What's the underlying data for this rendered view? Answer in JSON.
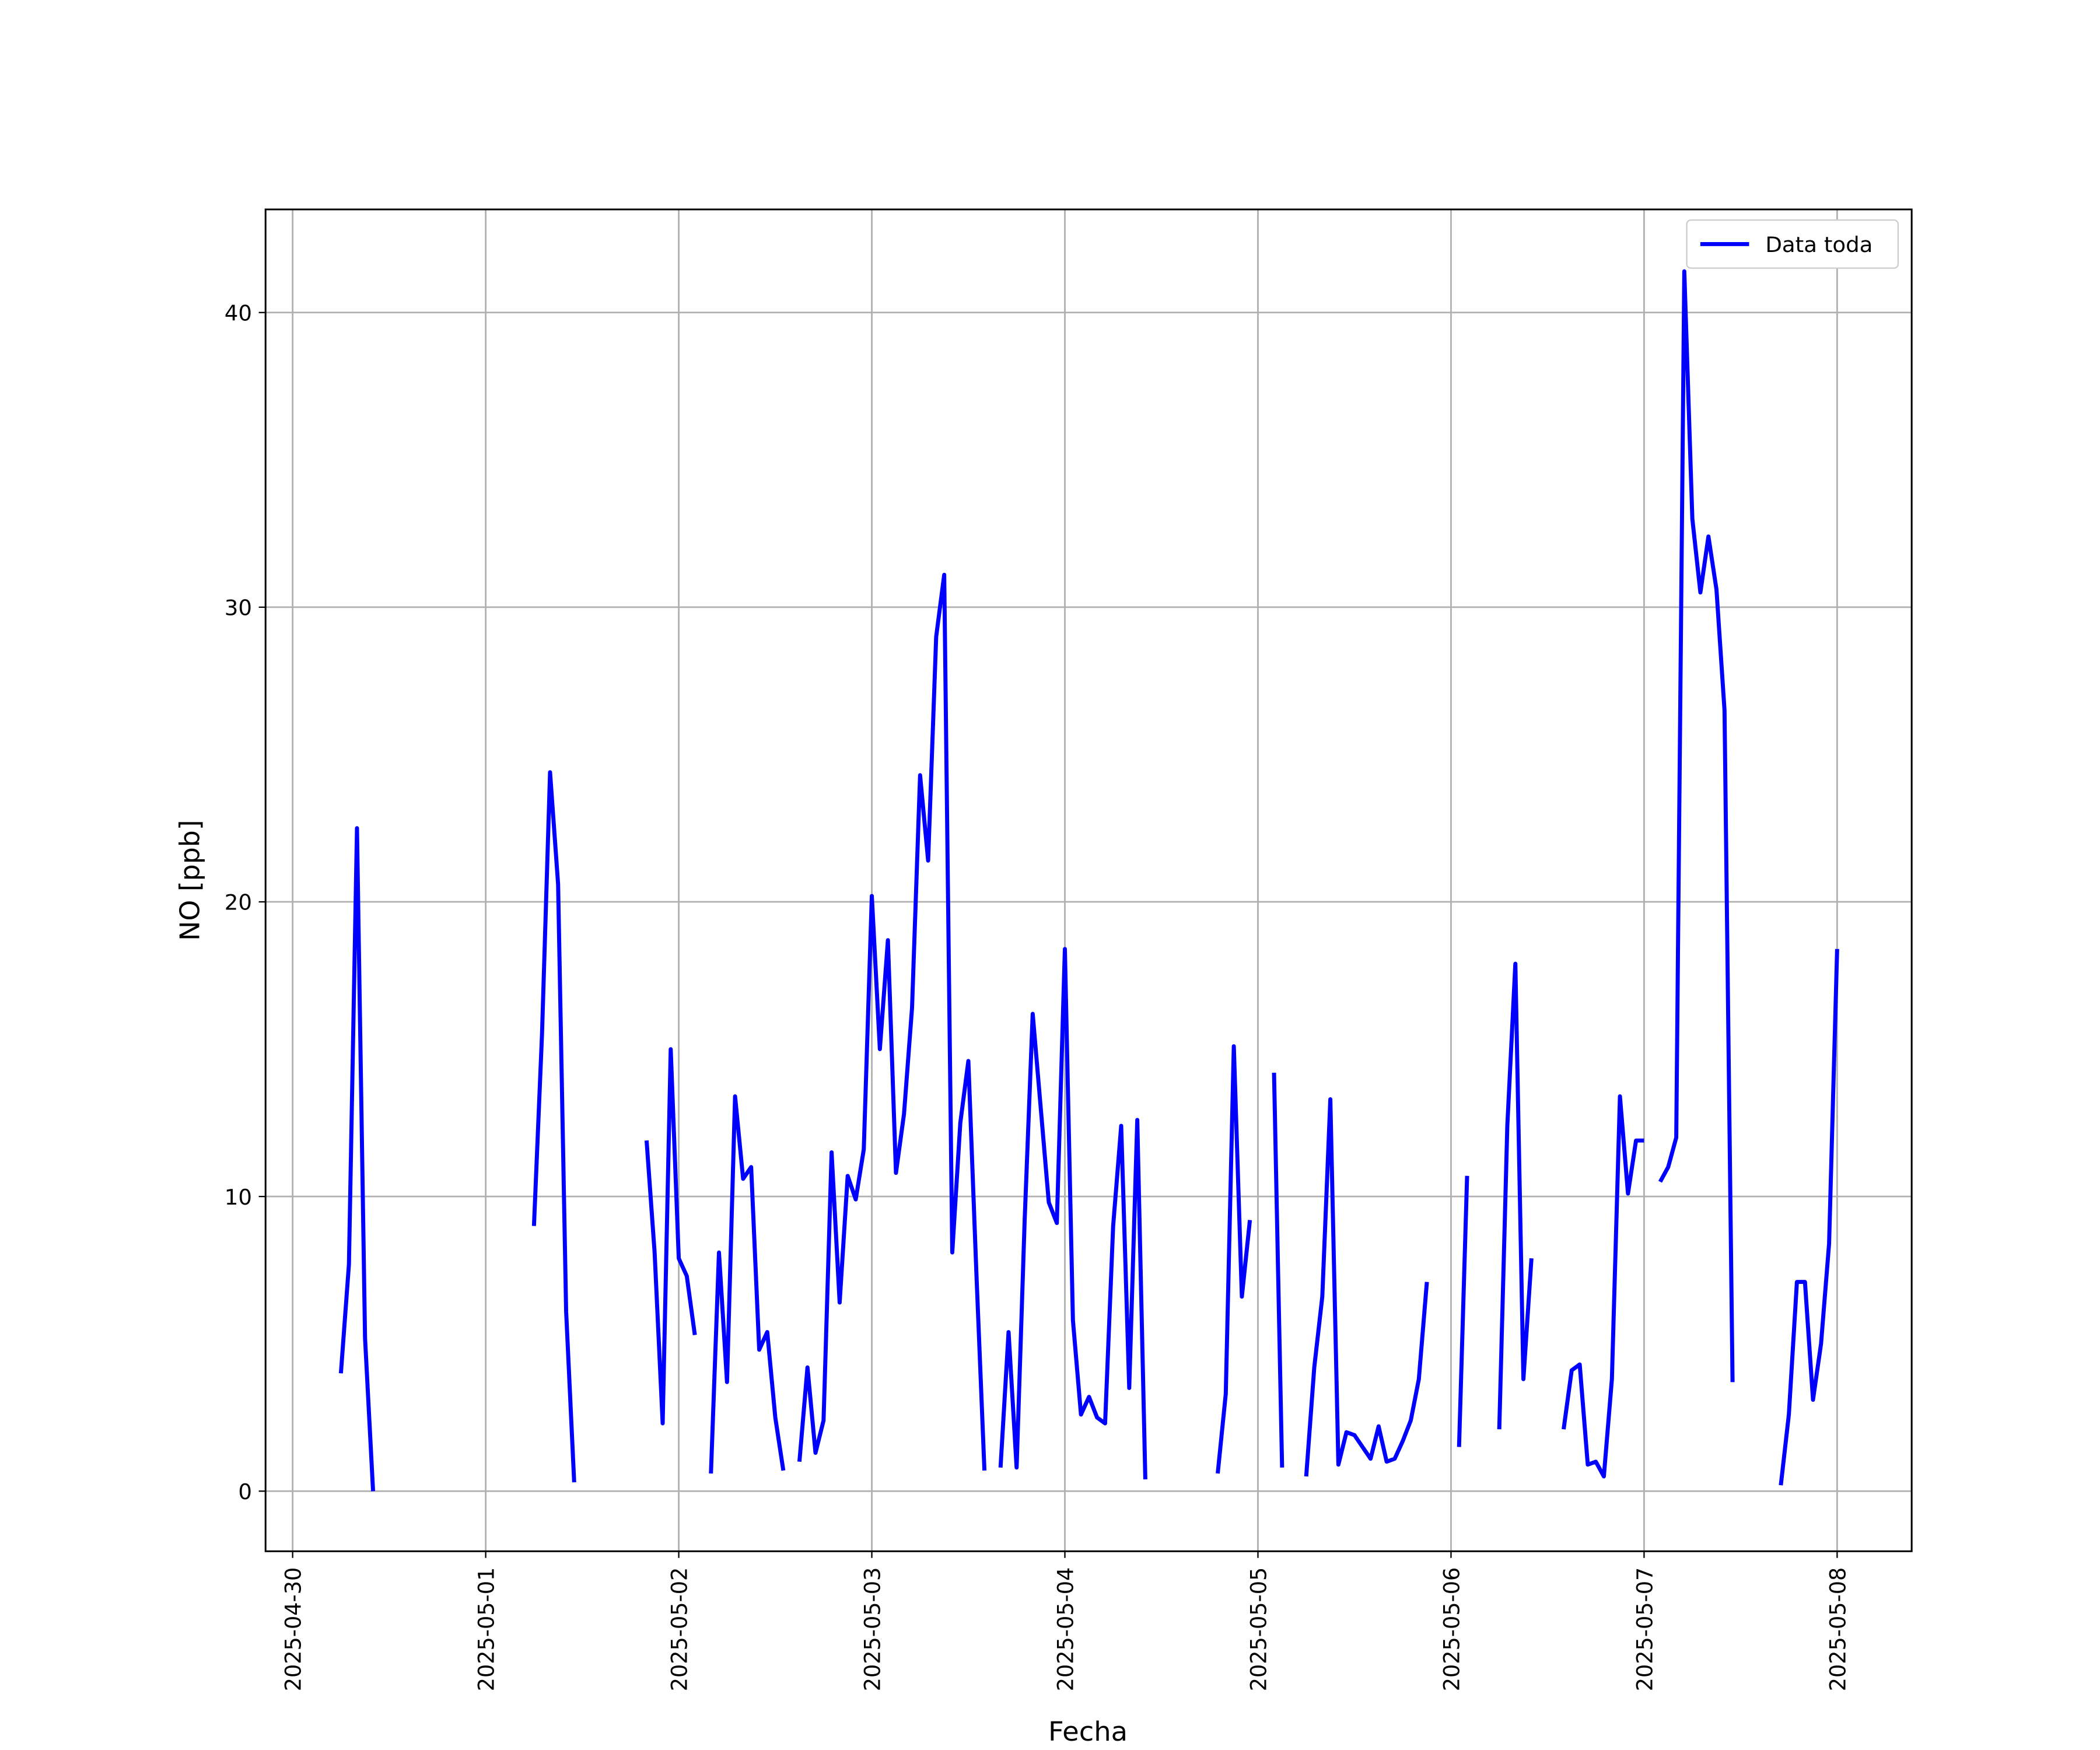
{
  "chart_data": {
    "type": "line",
    "xlabel": "Fecha",
    "ylabel": "NO [ppb]",
    "x": [
      "2025-04-30 06:00",
      "2025-04-30 07:00",
      "2025-04-30 08:00",
      "2025-04-30 09:00",
      "2025-04-30 10:00",
      "2025-04-30 11:00",
      "2025-05-01 06:00",
      "2025-05-01 07:00",
      "2025-05-01 08:00",
      "2025-05-01 09:00",
      "2025-05-01 10:00",
      "2025-05-01 11:00",
      "2025-05-01 12:00",
      "2025-05-01 20:00",
      "2025-05-01 21:00",
      "2025-05-01 22:00",
      "2025-05-01 23:00",
      "2025-05-02 00:00",
      "2025-05-02 01:00",
      "2025-05-02 02:00",
      "2025-05-02 03:00",
      "2025-05-02 04:00",
      "2025-05-02 05:00",
      "2025-05-02 06:00",
      "2025-05-02 07:00",
      "2025-05-02 08:00",
      "2025-05-02 09:00",
      "2025-05-02 10:00",
      "2025-05-02 11:00",
      "2025-05-02 12:00",
      "2025-05-02 13:00",
      "2025-05-02 14:00",
      "2025-05-02 15:00",
      "2025-05-02 16:00",
      "2025-05-02 17:00",
      "2025-05-02 18:00",
      "2025-05-02 19:00",
      "2025-05-02 20:00",
      "2025-05-02 21:00",
      "2025-05-02 22:00",
      "2025-05-02 23:00",
      "2025-05-03 00:00",
      "2025-05-03 01:00",
      "2025-05-03 02:00",
      "2025-05-03 03:00",
      "2025-05-03 04:00",
      "2025-05-03 05:00",
      "2025-05-03 06:00",
      "2025-05-03 07:00",
      "2025-05-03 08:00",
      "2025-05-03 09:00",
      "2025-05-03 10:00",
      "2025-05-03 11:00",
      "2025-05-03 12:00",
      "2025-05-03 13:00",
      "2025-05-03 14:00",
      "2025-05-03 15:00",
      "2025-05-03 16:00",
      "2025-05-03 17:00",
      "2025-05-03 18:00",
      "2025-05-03 19:00",
      "2025-05-03 20:00",
      "2025-05-03 21:00",
      "2025-05-03 22:00",
      "2025-05-03 23:00",
      "2025-05-04 00:00",
      "2025-05-04 01:00",
      "2025-05-04 02:00",
      "2025-05-04 03:00",
      "2025-05-04 04:00",
      "2025-05-04 05:00",
      "2025-05-04 06:00",
      "2025-05-04 07:00",
      "2025-05-04 08:00",
      "2025-05-04 09:00",
      "2025-05-04 10:00",
      "2025-05-04 11:00",
      "2025-05-04 19:00",
      "2025-05-04 20:00",
      "2025-05-04 21:00",
      "2025-05-04 22:00",
      "2025-05-04 23:00",
      "2025-05-05 00:00",
      "2025-05-05 02:00",
      "2025-05-05 03:00",
      "2025-05-05 04:00",
      "2025-05-05 06:00",
      "2025-05-05 07:00",
      "2025-05-05 08:00",
      "2025-05-05 09:00",
      "2025-05-05 10:00",
      "2025-05-05 11:00",
      "2025-05-05 12:00",
      "2025-05-05 13:00",
      "2025-05-05 14:00",
      "2025-05-05 15:00",
      "2025-05-05 16:00",
      "2025-05-05 17:00",
      "2025-05-05 18:00",
      "2025-05-05 19:00",
      "2025-05-05 20:00",
      "2025-05-05 21:00",
      "2025-05-05 22:00",
      "2025-05-06 01:00",
      "2025-05-06 02:00",
      "2025-05-06 03:00",
      "2025-05-06 06:00",
      "2025-05-06 07:00",
      "2025-05-06 08:00",
      "2025-05-06 09:00",
      "2025-05-06 10:00",
      "2025-05-06 11:00",
      "2025-05-06 14:00",
      "2025-05-06 15:00",
      "2025-05-06 16:00",
      "2025-05-06 17:00",
      "2025-05-06 18:00",
      "2025-05-06 19:00",
      "2025-05-06 20:00",
      "2025-05-06 21:00",
      "2025-05-06 22:00",
      "2025-05-06 23:00",
      "2025-05-07 00:00",
      "2025-05-07 01:00",
      "2025-05-07 02:00",
      "2025-05-07 03:00",
      "2025-05-07 04:00",
      "2025-05-07 05:00",
      "2025-05-07 06:00",
      "2025-05-07 07:00",
      "2025-05-07 08:00",
      "2025-05-07 09:00",
      "2025-05-07 10:00",
      "2025-05-07 11:00",
      "2025-05-07 12:00",
      "2025-05-07 17:00",
      "2025-05-07 18:00",
      "2025-05-07 19:00",
      "2025-05-07 20:00",
      "2025-05-07 21:00",
      "2025-05-07 22:00",
      "2025-05-07 23:00",
      "2025-05-08 00:00"
    ],
    "series": [
      {
        "name": "Data toda",
        "color": "#0000ff",
        "values": [
          4.0,
          7.7,
          22.5,
          5.2,
          0.0,
          null,
          9.0,
          15.5,
          24.4,
          20.6,
          6.1,
          0.3,
          null,
          11.9,
          8.1,
          2.3,
          15.0,
          7.9,
          7.3,
          5.3,
          null,
          0.6,
          8.1,
          3.7,
          13.4,
          10.6,
          11.0,
          4.8,
          5.4,
          2.5,
          0.7,
          null,
          1.0,
          4.2,
          1.3,
          2.4,
          11.5,
          6.4,
          10.7,
          9.9,
          11.6,
          20.2,
          15.0,
          18.7,
          10.8,
          12.8,
          16.4,
          24.3,
          21.4,
          29.0,
          31.1,
          8.1,
          12.5,
          14.6,
          7.4,
          0.7,
          null,
          0.8,
          5.4,
          0.8,
          9.2,
          16.2,
          13.0,
          9.8,
          9.1,
          18.4,
          5.8,
          2.6,
          3.2,
          2.5,
          2.3,
          9.0,
          12.4,
          3.5,
          12.6,
          0.4,
          null,
          0.6,
          3.3,
          15.1,
          6.6,
          9.2,
          null,
          14.2,
          0.8,
          null,
          0.5,
          4.2,
          6.6,
          13.3,
          0.9,
          2.0,
          1.9,
          1.5,
          1.1,
          2.2,
          1.0,
          1.1,
          1.7,
          2.4,
          3.8,
          7.1,
          null,
          1.5,
          10.7,
          null,
          2.1,
          12.4,
          17.9,
          3.8,
          7.9,
          null,
          2.1,
          4.1,
          4.3,
          0.9,
          1.0,
          0.5,
          3.8,
          13.4,
          10.1,
          11.9,
          11.9,
          null,
          10.5,
          11.0,
          12.0,
          41.4,
          33.0,
          30.5,
          32.4,
          30.6,
          26.5,
          3.7,
          null,
          0.2,
          2.6,
          7.1,
          7.1,
          3.1,
          5.0,
          8.4,
          18.4
        ]
      }
    ],
    "xlim": [
      "2025-04-29 20:38",
      "2025-05-08 09:16"
    ],
    "xticks": [
      "2025-04-30",
      "2025-05-01",
      "2025-05-02",
      "2025-05-03",
      "2025-05-04",
      "2025-05-05",
      "2025-05-06",
      "2025-05-07",
      "2025-05-08"
    ],
    "ylim": [
      -2.04,
      43.5
    ],
    "yticks": [
      0,
      10,
      20,
      30,
      40
    ],
    "grid": true,
    "legend": "upper right"
  }
}
